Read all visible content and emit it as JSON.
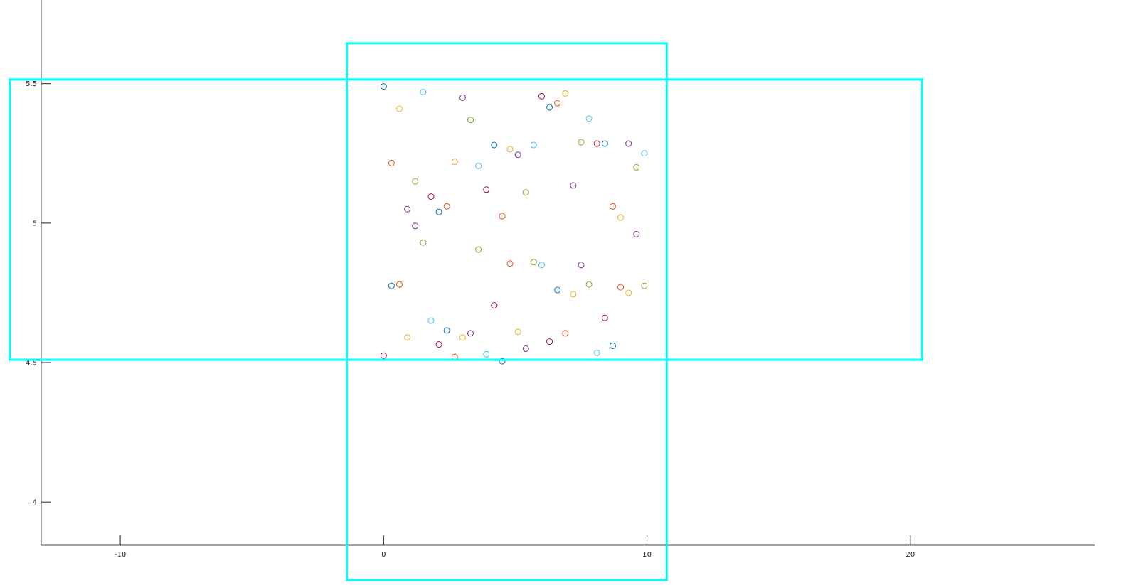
{
  "chart_data": {
    "type": "scatter",
    "title": "",
    "xlabel": "",
    "ylabel": "",
    "xlim": [
      -13,
      27
    ],
    "ylim": [
      3.845,
      5.8
    ],
    "x_ticks": [
      {
        "value": -10,
        "label": "-10"
      },
      {
        "value": 0,
        "label": "0"
      },
      {
        "value": 10,
        "label": "10"
      },
      {
        "value": 20,
        "label": "20"
      }
    ],
    "y_ticks": [
      {
        "value": 4,
        "label": "4"
      },
      {
        "value": 4.5,
        "label": "4.5"
      },
      {
        "value": 5,
        "label": "5"
      },
      {
        "value": 5.5,
        "label": "5.5"
      }
    ],
    "grid": false,
    "legend": "none",
    "marker": "open-circle",
    "rectangles": [
      {
        "x0": -14.2,
        "x1": 20.45,
        "y0": 4.51,
        "y1": 5.515,
        "color": "#00ffff"
      },
      {
        "x0": -1.4,
        "x1": 10.75,
        "y0": 3.72,
        "y1": 5.645,
        "color": "#00ffff"
      }
    ],
    "points": [
      {
        "x": 0.0,
        "y": 5.49,
        "color": "#0072bd"
      },
      {
        "x": 1.5,
        "y": 5.47,
        "color": "#4dbeee"
      },
      {
        "x": 0.6,
        "y": 5.41,
        "color": "#edb120"
      },
      {
        "x": 3.0,
        "y": 5.45,
        "color": "#7e2f8e"
      },
      {
        "x": 3.3,
        "y": 5.37,
        "color": "#77ac30"
      },
      {
        "x": 6.0,
        "y": 5.455,
        "color": "#a2142f"
      },
      {
        "x": 6.9,
        "y": 5.465,
        "color": "#edb120"
      },
      {
        "x": 6.6,
        "y": 5.43,
        "color": "#d95319"
      },
      {
        "x": 6.3,
        "y": 5.415,
        "color": "#0072bd"
      },
      {
        "x": 7.8,
        "y": 5.375,
        "color": "#4dbeee"
      },
      {
        "x": 4.2,
        "y": 5.28,
        "color": "#0072bd"
      },
      {
        "x": 4.8,
        "y": 5.265,
        "color": "#edb120"
      },
      {
        "x": 5.1,
        "y": 5.245,
        "color": "#7e2f8e"
      },
      {
        "x": 5.7,
        "y": 5.28,
        "color": "#4dbeee"
      },
      {
        "x": 7.5,
        "y": 5.29,
        "color": "#77ac30"
      },
      {
        "x": 8.1,
        "y": 5.285,
        "color": "#a2142f"
      },
      {
        "x": 8.4,
        "y": 5.285,
        "color": "#0072bd"
      },
      {
        "x": 9.3,
        "y": 5.285,
        "color": "#7e2f8e"
      },
      {
        "x": 9.9,
        "y": 5.25,
        "color": "#4dbeee"
      },
      {
        "x": 0.3,
        "y": 5.215,
        "color": "#d95319"
      },
      {
        "x": 2.7,
        "y": 5.22,
        "color": "#edb120"
      },
      {
        "x": 3.6,
        "y": 5.205,
        "color": "#4dbeee"
      },
      {
        "x": 9.6,
        "y": 5.2,
        "color": "#77ac30"
      },
      {
        "x": 1.2,
        "y": 5.15,
        "color": "#77ac30"
      },
      {
        "x": 3.9,
        "y": 5.12,
        "color": "#a2142f"
      },
      {
        "x": 5.4,
        "y": 5.11,
        "color": "#77ac30"
      },
      {
        "x": 7.2,
        "y": 5.135,
        "color": "#7e2f8e"
      },
      {
        "x": 1.8,
        "y": 5.095,
        "color": "#a2142f"
      },
      {
        "x": 0.9,
        "y": 5.05,
        "color": "#7e2f8e"
      },
      {
        "x": 2.1,
        "y": 5.04,
        "color": "#0072bd"
      },
      {
        "x": 2.4,
        "y": 5.06,
        "color": "#d95319"
      },
      {
        "x": 4.5,
        "y": 5.025,
        "color": "#d95319"
      },
      {
        "x": 8.7,
        "y": 5.06,
        "color": "#d95319"
      },
      {
        "x": 9.0,
        "y": 5.02,
        "color": "#edb120"
      },
      {
        "x": 1.2,
        "y": 4.99,
        "color": "#7e2f8e"
      },
      {
        "x": 9.6,
        "y": 4.96,
        "color": "#7e2f8e"
      },
      {
        "x": 1.5,
        "y": 4.93,
        "color": "#77ac30"
      },
      {
        "x": 3.6,
        "y": 4.905,
        "color": "#77ac30"
      },
      {
        "x": 4.8,
        "y": 4.855,
        "color": "#d95319"
      },
      {
        "x": 5.7,
        "y": 4.86,
        "color": "#77ac30"
      },
      {
        "x": 6.0,
        "y": 4.85,
        "color": "#4dbeee"
      },
      {
        "x": 7.5,
        "y": 4.85,
        "color": "#7e2f8e"
      },
      {
        "x": 0.3,
        "y": 4.775,
        "color": "#0072bd"
      },
      {
        "x": 0.6,
        "y": 4.78,
        "color": "#d95319"
      },
      {
        "x": 6.6,
        "y": 4.76,
        "color": "#0072bd"
      },
      {
        "x": 7.2,
        "y": 4.745,
        "color": "#edb120"
      },
      {
        "x": 7.8,
        "y": 4.78,
        "color": "#77ac30"
      },
      {
        "x": 9.0,
        "y": 4.77,
        "color": "#d95319"
      },
      {
        "x": 9.3,
        "y": 4.75,
        "color": "#edb120"
      },
      {
        "x": 9.9,
        "y": 4.775,
        "color": "#77ac30"
      },
      {
        "x": 4.2,
        "y": 4.705,
        "color": "#a2142f"
      },
      {
        "x": 8.4,
        "y": 4.66,
        "color": "#a2142f"
      },
      {
        "x": 1.8,
        "y": 4.65,
        "color": "#4dbeee"
      },
      {
        "x": 2.4,
        "y": 4.615,
        "color": "#0072bd"
      },
      {
        "x": 3.3,
        "y": 4.605,
        "color": "#7e2f8e"
      },
      {
        "x": 5.1,
        "y": 4.61,
        "color": "#edb120"
      },
      {
        "x": 6.9,
        "y": 4.605,
        "color": "#d95319"
      },
      {
        "x": 0.9,
        "y": 4.59,
        "color": "#edb120"
      },
      {
        "x": 3.0,
        "y": 4.59,
        "color": "#edb120"
      },
      {
        "x": 2.1,
        "y": 4.565,
        "color": "#a2142f"
      },
      {
        "x": 6.3,
        "y": 4.575,
        "color": "#a2142f"
      },
      {
        "x": 5.4,
        "y": 4.55,
        "color": "#7e2f8e"
      },
      {
        "x": 8.7,
        "y": 4.56,
        "color": "#0072bd"
      },
      {
        "x": 8.1,
        "y": 4.535,
        "color": "#4dbeee"
      },
      {
        "x": 3.9,
        "y": 4.53,
        "color": "#4dbeee"
      },
      {
        "x": 0.0,
        "y": 4.525,
        "color": "#a2142f"
      },
      {
        "x": 2.7,
        "y": 4.52,
        "color": "#d95319"
      },
      {
        "x": 4.5,
        "y": 4.505,
        "color": "#0072bd"
      }
    ]
  }
}
